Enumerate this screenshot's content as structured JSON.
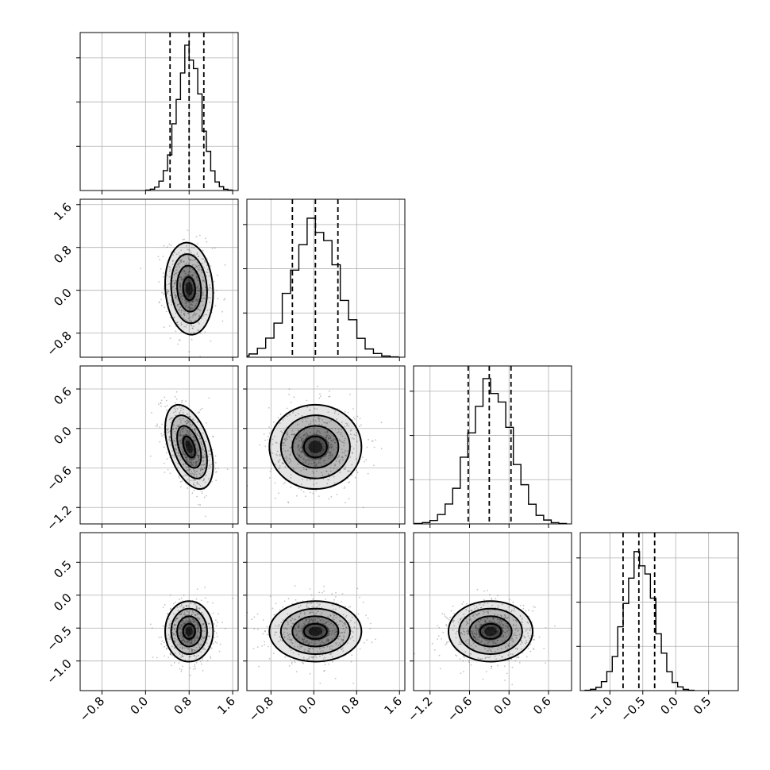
{
  "chart_data": {
    "type": "corner",
    "title": "",
    "grid": true,
    "samples_note_color": "#9a9a9a",
    "parameters": [
      {
        "index": 0,
        "mean": 0.8,
        "std": 0.22,
        "range": [
          -1.2,
          1.7
        ],
        "ticks": [
          -0.8,
          0.0,
          0.8,
          1.6
        ],
        "quantiles": [
          0.45,
          0.8,
          1.07
        ]
      },
      {
        "index": 1,
        "mean": 0.03,
        "std": 0.43,
        "range": [
          -1.25,
          1.7
        ],
        "ticks": [
          -0.8,
          0.0,
          0.8,
          1.6
        ],
        "quantiles": [
          -0.4,
          0.03,
          0.45
        ]
      },
      {
        "index": 2,
        "mean": -0.28,
        "std": 0.32,
        "range": [
          -1.45,
          0.95
        ],
        "ticks": [
          -1.2,
          -0.6,
          0.0,
          0.6
        ],
        "quantiles": [
          -0.62,
          -0.3,
          0.03
        ]
      },
      {
        "index": 3,
        "mean": -0.55,
        "std": 0.23,
        "range": [
          -1.45,
          0.95
        ],
        "ticks": [
          -1.0,
          -0.5,
          0.0,
          0.5
        ],
        "quantiles": [
          -0.8,
          -0.56,
          -0.32
        ]
      }
    ],
    "correlations": {
      "1_0": -0.1,
      "2_0": -0.45,
      "2_1": 0.0,
      "3_0": 0.0,
      "3_1": 0.0,
      "3_2": 0.0
    },
    "tick_labels": {
      "x": {
        "p0": [
          "−0.8",
          "0.0",
          "0.8",
          "1.6"
        ],
        "p1": [
          "−0.8",
          "0.0",
          "0.8",
          "1.6"
        ],
        "p2": [
          "−1.2",
          "−0.6",
          "0.0",
          "0.6"
        ],
        "p3": [
          "−1.0",
          "−0.5",
          "0.0",
          "0.5"
        ]
      },
      "y": {
        "p1": [
          "−0.8",
          "0.0",
          "0.8",
          "1.6"
        ],
        "p2": [
          "−1.2",
          "−0.6",
          "0.0",
          "0.6"
        ],
        "p3": [
          "−1.0",
          "−0.5",
          "0.0",
          "0.5"
        ]
      }
    },
    "contour_levels_sigma": [
      0.5,
      1.0,
      1.5,
      2.0
    ]
  }
}
